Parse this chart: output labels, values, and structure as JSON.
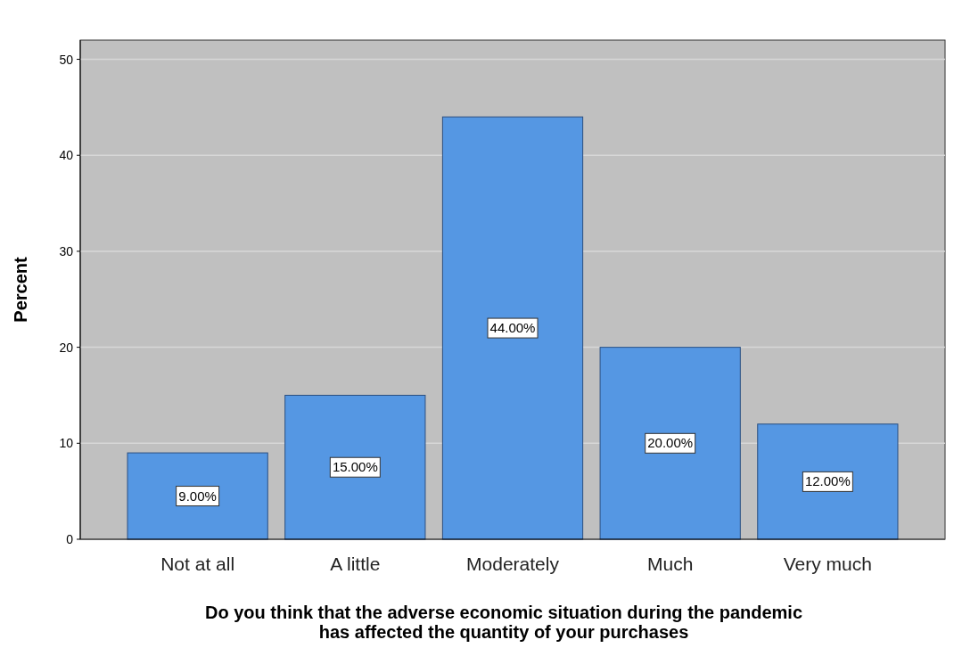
{
  "chart_data": {
    "type": "bar",
    "xlabel": "Do you think that the adverse economic situation during the pandemic has affected the quantity of your purchases",
    "ylabel": "Percent",
    "categories": [
      "Not at all",
      "A little",
      "Moderately",
      "Much",
      "Very much"
    ],
    "values": [
      9,
      15,
      44,
      20,
      12
    ],
    "value_labels": [
      "9.00%",
      "15.00%",
      "44.00%",
      "20.00%",
      "12.00%"
    ],
    "color": "#5597e3",
    "ylim": [
      0,
      52
    ],
    "yticks": [
      0,
      10,
      20,
      30,
      40,
      50
    ],
    "grid": "y"
  }
}
